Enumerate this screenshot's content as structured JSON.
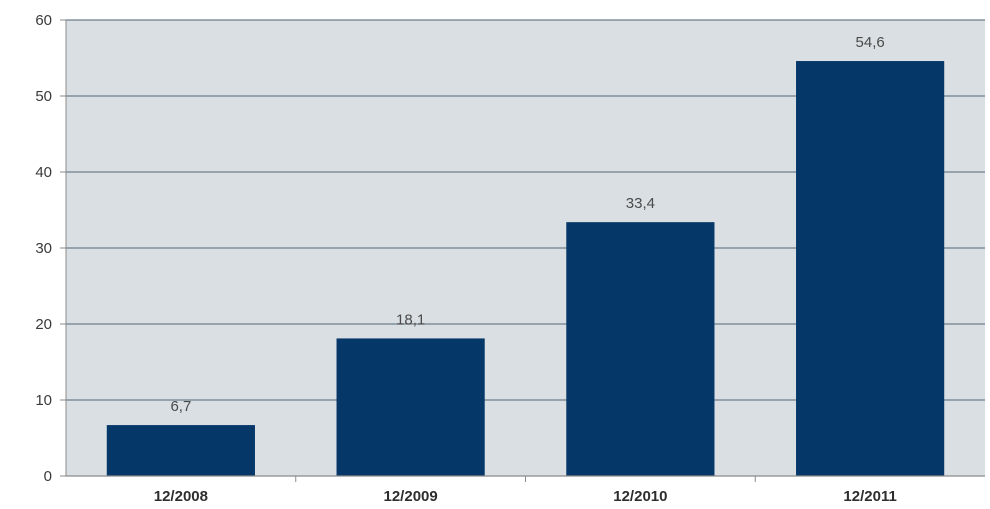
{
  "chart_data": {
    "type": "bar",
    "categories": [
      "12/2008",
      "12/2009",
      "12/2010",
      "12/2011"
    ],
    "values": [
      6.7,
      18.1,
      33.4,
      54.6
    ],
    "data_labels": [
      "6,7",
      "18,1",
      "33,4",
      "54,6"
    ],
    "title": "",
    "xlabel": "",
    "ylabel": "",
    "ylim": [
      0,
      60
    ],
    "yticks": [
      0,
      10,
      20,
      30,
      40,
      50,
      60
    ],
    "grid": true,
    "legend": "none",
    "colors": {
      "bar": "#063769",
      "plot_background": "#d9dfe3",
      "grid": "#6f7f8c",
      "axis": "#8a8a8a"
    }
  }
}
